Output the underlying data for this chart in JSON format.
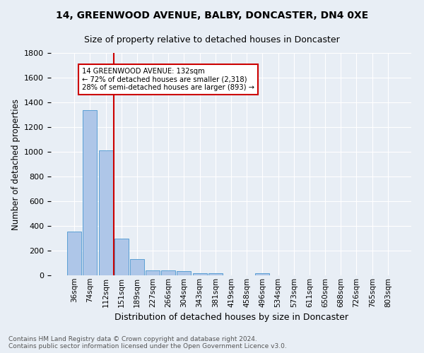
{
  "title1": "14, GREENWOOD AVENUE, BALBY, DONCASTER, DN4 0XE",
  "title2": "Size of property relative to detached houses in Doncaster",
  "xlabel": "Distribution of detached houses by size in Doncaster",
  "ylabel": "Number of detached properties",
  "footnote": "Contains HM Land Registry data © Crown copyright and database right 2024.\nContains public sector information licensed under the Open Government Licence v3.0.",
  "bar_labels": [
    "36sqm",
    "74sqm",
    "112sqm",
    "151sqm",
    "189sqm",
    "227sqm",
    "266sqm",
    "304sqm",
    "343sqm",
    "381sqm",
    "419sqm",
    "458sqm",
    "496sqm",
    "534sqm",
    "573sqm",
    "611sqm",
    "650sqm",
    "688sqm",
    "726sqm",
    "765sqm",
    "803sqm"
  ],
  "bar_values": [
    355,
    1340,
    1010,
    295,
    130,
    40,
    38,
    32,
    20,
    15,
    0,
    0,
    20,
    0,
    0,
    0,
    0,
    0,
    0,
    0,
    0
  ],
  "bar_color": "#aec6e8",
  "bar_edge_color": "#5a9fd4",
  "property_label": "14 GREENWOOD AVENUE: 132sqm",
  "pct_smaller": 72,
  "n_smaller": 2318,
  "pct_larger": 28,
  "n_larger": 893,
  "vline_color": "#cc0000",
  "vline_x_index": 2.5,
  "annotation_box_color": "#ffffff",
  "annotation_box_edge": "#cc0000",
  "bg_color": "#e8eef5",
  "ylim": [
    0,
    1800
  ],
  "yticks": [
    0,
    200,
    400,
    600,
    800,
    1000,
    1200,
    1400,
    1600,
    1800
  ]
}
